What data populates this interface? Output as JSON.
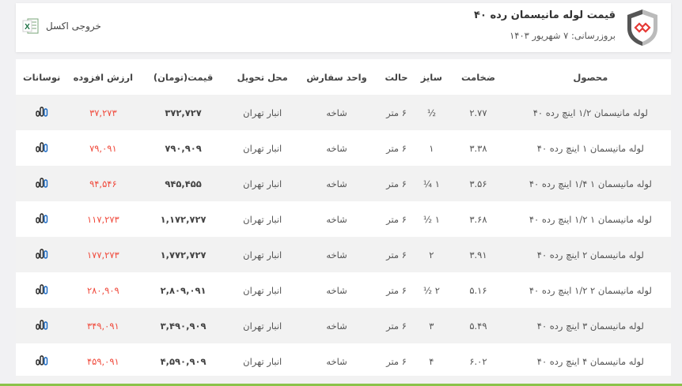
{
  "header": {
    "title": "قیمت لوله مانیسمان رده ۴۰",
    "updated": "بروزرسانی: ۷ شهریور ۱۴۰۳",
    "excel_label": "خروجی اکسل",
    "logo_icon": "shield-link-icon",
    "excel_icon": "excel-icon"
  },
  "colors": {
    "accent": "#8bc34a",
    "increase": "#f04a3c",
    "logo_red": "#e53935"
  },
  "table": {
    "columns": [
      "محصول",
      "ضخامت",
      "سایز",
      "حالت",
      "واحد سفارش",
      "محل تحویل",
      "قیمت(تومان)",
      "ارزش افزوده",
      "نوسانات"
    ],
    "rows": [
      {
        "product": "لوله مانیسمان ۱/۲ اینچ رده ۴۰",
        "thickness": "۲.۷۷",
        "size": "½",
        "state": "۶ متر",
        "unit": "شاخه",
        "delivery": "انبار تهران",
        "price": "۳۷۲,۷۲۷",
        "vat": "۳۷,۲۷۳"
      },
      {
        "product": "لوله مانیسمان ۱ اینچ رده ۴۰",
        "thickness": "۳.۳۸",
        "size": "۱",
        "state": "۶ متر",
        "unit": "شاخه",
        "delivery": "انبار تهران",
        "price": "۷۹۰,۹۰۹",
        "vat": "۷۹,۰۹۱"
      },
      {
        "product": "لوله مانیسمان ۱ ۱/۴ اینچ رده ۴۰",
        "thickness": "۳.۵۶",
        "size": "۱ ¼",
        "state": "۶ متر",
        "unit": "شاخه",
        "delivery": "انبار تهران",
        "price": "۹۴۵,۴۵۵",
        "vat": "۹۴,۵۴۶"
      },
      {
        "product": "لوله مانیسمان ۱ ۱/۲ اینچ رده ۴۰",
        "thickness": "۳.۶۸",
        "size": "۱ ½",
        "state": "۶ متر",
        "unit": "شاخه",
        "delivery": "انبار تهران",
        "price": "۱,۱۷۲,۷۲۷",
        "vat": "۱۱۷,۲۷۳"
      },
      {
        "product": "لوله مانیسمان ۲ اینچ رده ۴۰",
        "thickness": "۳.۹۱",
        "size": "۲",
        "state": "۶ متر",
        "unit": "شاخه",
        "delivery": "انبار تهران",
        "price": "۱,۷۷۲,۷۲۷",
        "vat": "۱۷۷,۲۷۳"
      },
      {
        "product": "لوله مانیسمان ۲ ۱/۲ اینچ رده ۴۰",
        "thickness": "۵.۱۶",
        "size": "۲ ½",
        "state": "۶ متر",
        "unit": "شاخه",
        "delivery": "انبار تهران",
        "price": "۲,۸۰۹,۰۹۱",
        "vat": "۲۸۰,۹۰۹"
      },
      {
        "product": "لوله مانیسمان ۳ اینچ رده ۴۰",
        "thickness": "۵.۴۹",
        "size": "۳",
        "state": "۶ متر",
        "unit": "شاخه",
        "delivery": "انبار تهران",
        "price": "۳,۴۹۰,۹۰۹",
        "vat": "۳۴۹,۰۹۱"
      },
      {
        "product": "لوله مانیسمان ۴ اینچ رده ۴۰",
        "thickness": "۶.۰۲",
        "size": "۴",
        "state": "۶ متر",
        "unit": "شاخه",
        "delivery": "انبار تهران",
        "price": "۴,۵۹۰,۹۰۹",
        "vat": "۴۵۹,۰۹۱"
      }
    ],
    "chart_icon": "bar-chart-icon"
  }
}
